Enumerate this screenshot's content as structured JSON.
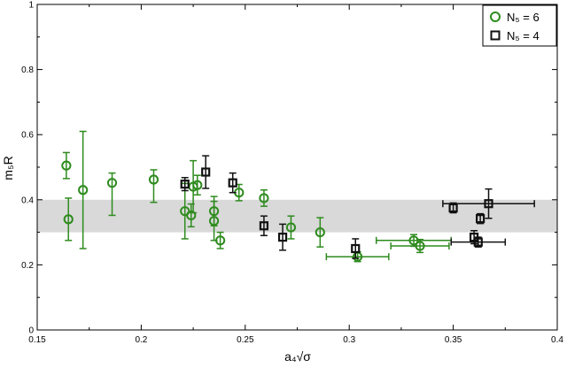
{
  "chart_data": {
    "type": "scatter",
    "xlabel": "a₄√σ",
    "ylabel": "m₅R",
    "xlim": [
      0.15,
      0.4
    ],
    "ylim": [
      0,
      1
    ],
    "x_ticks": [
      "0.15",
      "0.2",
      "0.25",
      "0.3",
      "0.35",
      "0.4"
    ],
    "y_ticks": [
      "0",
      "0.2",
      "0.4",
      "0.6",
      "0.8",
      "1"
    ],
    "grid": false,
    "legend_position": "top-right",
    "band": {
      "y_low": 0.3,
      "y_high": 0.4,
      "color": "#d9d9d9"
    },
    "series": [
      {
        "name": "N₅ = 6",
        "marker": "circle",
        "color": "#2e8b1e",
        "points": [
          {
            "x": 0.164,
            "y": 0.505,
            "yerr_lo": 0.04,
            "yerr_hi": 0.04
          },
          {
            "x": 0.165,
            "y": 0.34,
            "yerr_lo": 0.065,
            "yerr_hi": 0.065
          },
          {
            "x": 0.172,
            "y": 0.43,
            "yerr_lo": 0.18,
            "yerr_hi": 0.18
          },
          {
            "x": 0.186,
            "y": 0.452,
            "yerr_lo": 0.1,
            "yerr_hi": 0.03
          },
          {
            "x": 0.206,
            "y": 0.462,
            "yerr_lo": 0.07,
            "yerr_hi": 0.03
          },
          {
            "x": 0.221,
            "y": 0.365,
            "yerr_lo": 0.085,
            "yerr_hi": 0.085
          },
          {
            "x": 0.224,
            "y": 0.352,
            "yerr_lo": 0.035,
            "yerr_hi": 0.035
          },
          {
            "x": 0.225,
            "y": 0.44,
            "yerr_lo": 0.08,
            "yerr_hi": 0.08
          },
          {
            "x": 0.227,
            "y": 0.445,
            "yerr_lo": 0.03,
            "yerr_hi": 0.03
          },
          {
            "x": 0.235,
            "y": 0.365,
            "yerr_lo": 0.045,
            "yerr_hi": 0.045
          },
          {
            "x": 0.235,
            "y": 0.335,
            "yerr_lo": 0.06,
            "yerr_hi": 0.06
          },
          {
            "x": 0.238,
            "y": 0.275,
            "yerr_lo": 0.025,
            "yerr_hi": 0.025
          },
          {
            "x": 0.247,
            "y": 0.422,
            "yerr_lo": 0.025,
            "yerr_hi": 0.025
          },
          {
            "x": 0.259,
            "y": 0.405,
            "yerr_lo": 0.025,
            "yerr_hi": 0.025
          },
          {
            "x": 0.272,
            "y": 0.315,
            "yerr_lo": 0.035,
            "yerr_hi": 0.035
          },
          {
            "x": 0.286,
            "y": 0.3,
            "yerr_lo": 0.045,
            "yerr_hi": 0.045
          },
          {
            "x": 0.304,
            "y": 0.225,
            "yerr_lo": 0.015,
            "yerr_hi": 0.015,
            "xerr_lo": 0.015,
            "xerr_hi": 0.015
          },
          {
            "x": 0.331,
            "y": 0.275,
            "yerr_lo": 0.018,
            "yerr_hi": 0.018,
            "xerr_lo": 0.018,
            "xerr_hi": 0.018
          },
          {
            "x": 0.334,
            "y": 0.258,
            "yerr_lo": 0.02,
            "yerr_hi": 0.02,
            "xerr_lo": 0.014,
            "xerr_hi": 0.014
          }
        ]
      },
      {
        "name": "N₅ = 4",
        "marker": "square",
        "color": "#111111",
        "points": [
          {
            "x": 0.221,
            "y": 0.448,
            "yerr_lo": 0.02,
            "yerr_hi": 0.02
          },
          {
            "x": 0.231,
            "y": 0.485,
            "yerr_lo": 0.05,
            "yerr_hi": 0.05
          },
          {
            "x": 0.244,
            "y": 0.452,
            "yerr_lo": 0.03,
            "yerr_hi": 0.03
          },
          {
            "x": 0.259,
            "y": 0.32,
            "yerr_lo": 0.03,
            "yerr_hi": 0.03
          },
          {
            "x": 0.268,
            "y": 0.285,
            "yerr_lo": 0.04,
            "yerr_hi": 0.04
          },
          {
            "x": 0.303,
            "y": 0.25,
            "yerr_lo": 0.03,
            "yerr_hi": 0.03
          },
          {
            "x": 0.35,
            "y": 0.375,
            "yerr_lo": 0.015,
            "yerr_hi": 0.015
          },
          {
            "x": 0.36,
            "y": 0.285,
            "yerr_lo": 0.02,
            "yerr_hi": 0.02
          },
          {
            "x": 0.362,
            "y": 0.27,
            "yerr_lo": 0.015,
            "yerr_hi": 0.015,
            "xerr_lo": 0.013,
            "xerr_hi": 0.013
          },
          {
            "x": 0.363,
            "y": 0.342,
            "yerr_lo": 0.015,
            "yerr_hi": 0.015
          },
          {
            "x": 0.367,
            "y": 0.388,
            "yerr_lo": 0.045,
            "yerr_hi": 0.045,
            "xerr_lo": 0.022,
            "xerr_hi": 0.022
          }
        ]
      }
    ]
  }
}
